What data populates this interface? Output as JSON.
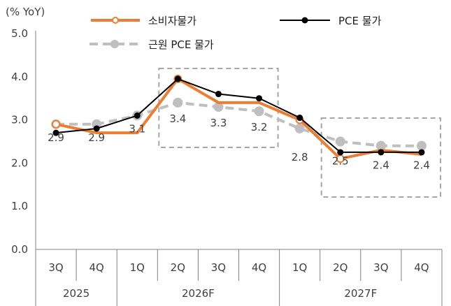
{
  "chart_data": {
    "type": "line",
    "unit_label": "(% YoY)",
    "ylim": [
      0,
      5
    ],
    "yticks": [
      "0.0",
      "1.0",
      "2.0",
      "3.0",
      "4.0",
      "5.0"
    ],
    "categories": [
      "3Q",
      "4Q",
      "1Q",
      "2Q",
      "3Q",
      "4Q",
      "1Q",
      "2Q",
      "3Q",
      "4Q"
    ],
    "year_groups": [
      {
        "label": "2025",
        "span": 2
      },
      {
        "label": "2026F",
        "span": 4
      },
      {
        "label": "2027F",
        "span": 4
      }
    ],
    "series": [
      {
        "name": "소비자물가",
        "color": "#ED7D31",
        "values": [
          2.9,
          2.7,
          2.7,
          3.95,
          3.4,
          3.4,
          3.0,
          2.1,
          2.3,
          2.2
        ]
      },
      {
        "name": "PCE 물가",
        "color": "#000000",
        "values": [
          2.7,
          2.8,
          3.1,
          3.95,
          3.6,
          3.5,
          3.05,
          2.25,
          2.25,
          2.25
        ]
      },
      {
        "name": "근원 PCE 물가",
        "color": "#BFBFBF",
        "values": [
          2.9,
          2.9,
          3.1,
          3.4,
          3.3,
          3.2,
          2.8,
          2.5,
          2.4,
          2.4
        ],
        "data_labels": [
          "2.9",
          "2.9",
          "3.1",
          "3.4",
          "3.3",
          "3.2",
          "2.8",
          "2.5",
          "2.4",
          "2.4"
        ]
      }
    ],
    "highlight_boxes": [
      {
        "from": 3,
        "to": 5
      },
      {
        "from": 7,
        "to": 9
      }
    ],
    "grid": false,
    "legend_placement": "top"
  }
}
